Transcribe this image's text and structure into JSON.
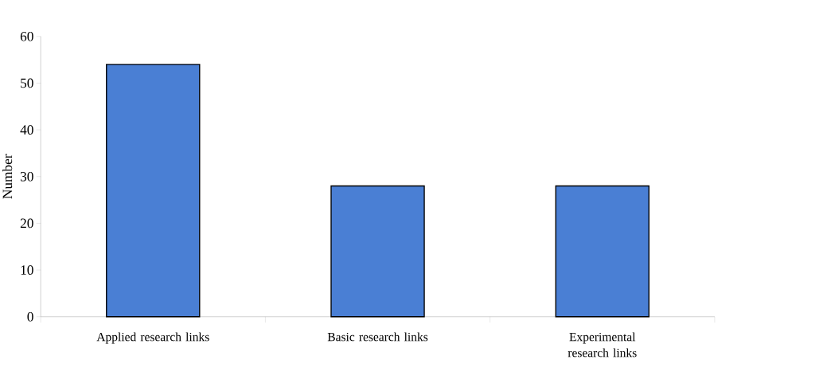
{
  "chart_data": {
    "type": "bar",
    "ylabel": "Number",
    "categories": [
      "Applied research links",
      "Basic research links",
      "Experimental research links"
    ],
    "values": [
      54,
      28,
      28
    ],
    "color": "#4a7fd4",
    "ylim": [
      0,
      60
    ],
    "yticks": [
      0,
      10,
      20,
      30,
      40,
      50,
      60
    ],
    "grid": false
  }
}
